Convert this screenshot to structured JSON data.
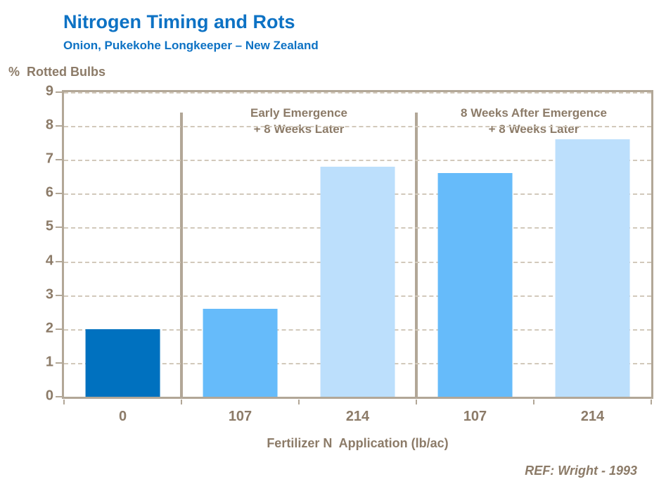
{
  "header": {
    "title": "Nitrogen Timing and Rots",
    "subtitle": "Onion, Pukekohe Longkeeper – New Zealand"
  },
  "chart_data": {
    "type": "bar",
    "title": "Nitrogen Timing and Rots",
    "subtitle": "Onion, Pukekohe Longkeeper – New Zealand",
    "ylabel": "%  Rotted Bulbs",
    "xlabel": "Fertilizer N  Application (lb/ac)",
    "ylim": [
      0,
      9
    ],
    "yticks": [
      9,
      8,
      7,
      6,
      5,
      4,
      3,
      2,
      1,
      0
    ],
    "grid": "horizontal dashed tan lines at each integer",
    "legend": "none",
    "categories": [
      "0",
      "107",
      "214",
      "107",
      "214"
    ],
    "values": [
      2.0,
      2.6,
      6.8,
      6.6,
      7.6
    ],
    "bar_colors": [
      "#0071bf",
      "#66bbfa",
      "#bcdffc",
      "#66bbfa",
      "#bcdffc"
    ],
    "group_annotations": [
      {
        "lines": [
          "Early Emergence",
          "+ 8 Weeks Later"
        ],
        "span_slots": [
          1,
          2
        ]
      },
      {
        "lines": [
          "8 Weeks After Emergence",
          "+ 8 Weeks Later"
        ],
        "span_slots": [
          3,
          4
        ]
      }
    ],
    "reference": "REF: Wright - 1993"
  },
  "colors": {
    "title_blue": "#0d72c4",
    "axis_text_brown": "#8c7b68",
    "frame_tan": "#b2a797",
    "gridline_tan": "#d2c9bb",
    "bar_dark_blue": "#0071bf",
    "bar_sky_blue": "#66bbfa",
    "bar_pale_blue": "#bcdffc",
    "background": "#ffffff"
  }
}
